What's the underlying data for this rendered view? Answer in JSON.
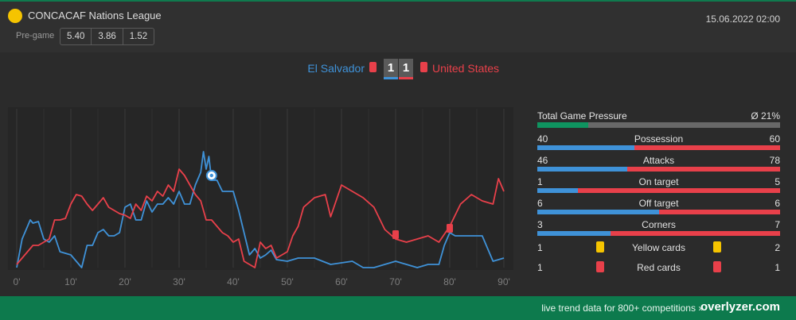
{
  "header": {
    "league": "CONCACAF Nations League",
    "datetime": "15.06.2022 02:00",
    "pregame_label": "Pre-game",
    "odds": [
      "5.40",
      "3.86",
      "1.52"
    ],
    "league_color": "#f5c400"
  },
  "match": {
    "home": "El Salvador",
    "away": "United States",
    "home_score": "1",
    "away_score": "1",
    "home_color": "#3f92d8",
    "away_color": "#e8404a"
  },
  "chart_data": {
    "type": "line",
    "x_ticks": [
      "0'",
      "10'",
      "20'",
      "30'",
      "40'",
      "50'",
      "60'",
      "70'",
      "80'",
      "90'"
    ],
    "xlim": [
      0,
      90
    ],
    "ylim": [
      0,
      100
    ],
    "series": [
      {
        "color": "#3f92d8",
        "x": [
          0,
          1,
          2,
          2.5,
          3,
          4,
          5,
          6,
          7,
          8,
          9,
          10,
          11,
          12,
          13,
          14,
          15,
          16,
          17,
          18,
          19,
          20,
          21,
          22,
          23,
          24,
          25,
          26,
          27,
          28,
          29,
          30,
          31,
          32,
          33,
          34,
          34.5,
          35,
          35.5,
          36,
          37,
          38,
          39,
          40,
          41,
          42,
          43,
          44,
          45,
          46,
          47,
          48,
          50,
          52,
          55,
          58,
          60,
          62,
          64,
          66,
          68,
          70,
          72,
          74,
          76,
          78,
          79,
          80,
          81,
          82,
          84,
          86,
          88,
          90
        ],
        "y": [
          0,
          18,
          26,
          30,
          28,
          29,
          18,
          16,
          20,
          10,
          9,
          8,
          4,
          0,
          14,
          14,
          22,
          24,
          20,
          20,
          22,
          38,
          40,
          30,
          30,
          42,
          35,
          40,
          40,
          44,
          40,
          48,
          40,
          40,
          52,
          60,
          73,
          62,
          70,
          55,
          55,
          48,
          48,
          48,
          36,
          22,
          8,
          12,
          6,
          8,
          11,
          5,
          4,
          6,
          6,
          2,
          3,
          4,
          0,
          0,
          2,
          4,
          2,
          0,
          2,
          2,
          14,
          22,
          20,
          20,
          20,
          20,
          4,
          6
        ]
      },
      {
        "color": "#e8404a",
        "x": [
          0,
          1,
          2,
          3,
          4,
          5,
          6,
          7,
          8,
          9,
          10,
          11,
          12,
          13,
          14,
          15,
          16,
          17,
          18,
          19,
          20,
          21,
          22,
          23,
          24,
          25,
          26,
          27,
          28,
          29,
          30,
          31,
          32,
          33,
          34,
          35,
          36,
          37,
          38,
          39,
          40,
          41,
          42,
          43,
          44,
          45,
          46,
          47,
          48,
          49,
          50,
          51,
          52,
          53,
          55,
          57,
          58,
          60,
          62,
          64,
          66,
          68,
          70,
          72,
          74,
          76,
          78,
          80,
          82,
          84,
          86,
          88,
          89,
          90
        ],
        "y": [
          2,
          6,
          10,
          14,
          14,
          16,
          18,
          30,
          30,
          31,
          40,
          46,
          45,
          40,
          36,
          40,
          44,
          38,
          36,
          34,
          33,
          31,
          40,
          36,
          45,
          42,
          48,
          45,
          52,
          48,
          62,
          58,
          52,
          46,
          42,
          30,
          30,
          26,
          22,
          20,
          16,
          18,
          4,
          2,
          0,
          16,
          12,
          14,
          6,
          8,
          10,
          20,
          26,
          38,
          44,
          46,
          32,
          52,
          48,
          44,
          38,
          24,
          18,
          16,
          18,
          20,
          16,
          26,
          40,
          46,
          42,
          40,
          56,
          48
        ]
      }
    ],
    "events": [
      {
        "type": "goal",
        "team": "home",
        "minute": 36
      },
      {
        "type": "red-card",
        "team": "away",
        "minute": 70
      },
      {
        "type": "red-card",
        "team": "home",
        "minute": 80
      }
    ]
  },
  "stats": {
    "pressure": {
      "label": "Total Game Pressure",
      "value": "Ø 21%",
      "fraction": 0.21
    },
    "rows": [
      {
        "label": "Possession",
        "home": "40",
        "away": "60"
      },
      {
        "label": "Attacks",
        "home": "46",
        "away": "78"
      },
      {
        "label": "On target",
        "home": "1",
        "away": "5"
      },
      {
        "label": "Off target",
        "home": "6",
        "away": "6"
      },
      {
        "label": "Corners",
        "home": "3",
        "away": "7"
      }
    ],
    "yellow": {
      "label": "Yellow cards",
      "home": "1",
      "away": "2",
      "color": "#f5c400"
    },
    "red": {
      "label": "Red cards",
      "home": "1",
      "away": "1",
      "color": "#e8404a"
    }
  },
  "footer": {
    "text": "live trend data for 800+ competitions »",
    "brand": "overlyzer.com"
  }
}
